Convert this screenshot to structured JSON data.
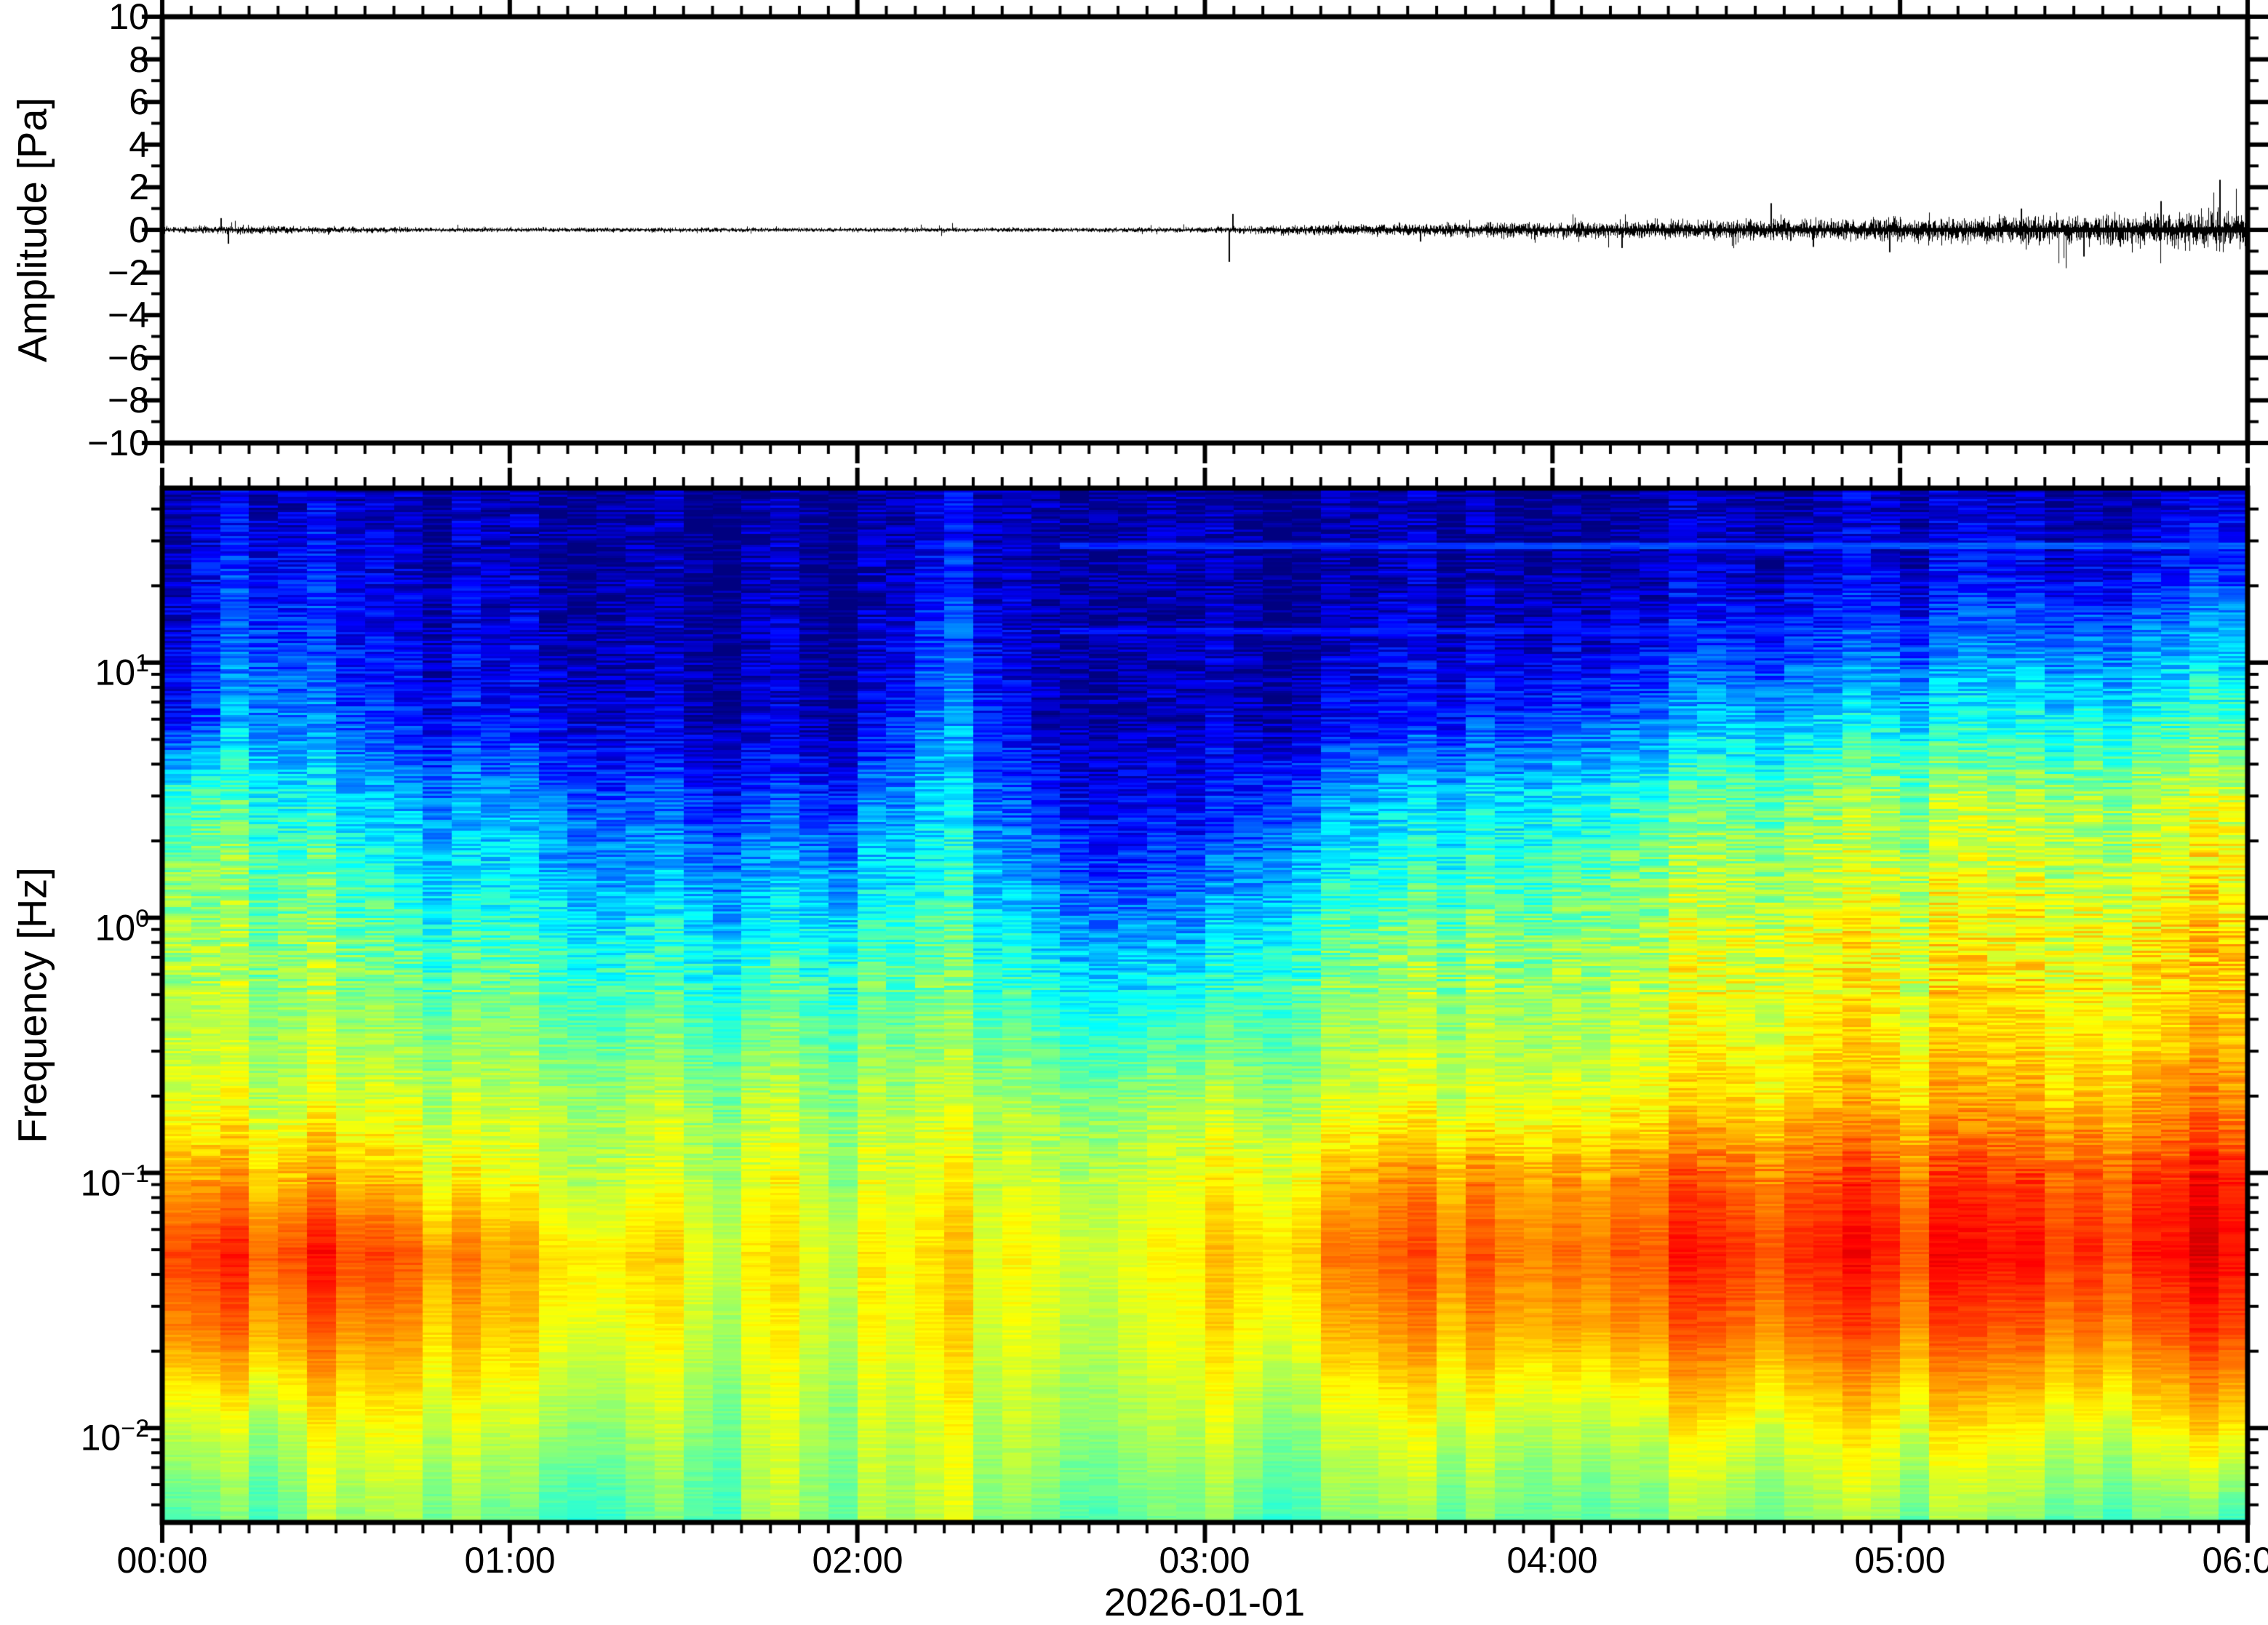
{
  "figure": {
    "background": "#ffffff",
    "frame_color": "#000000",
    "trace_color": "#000000"
  },
  "chart_data": [
    {
      "type": "line",
      "name": "infrasound-waveform",
      "ylabel": "Amplitude [Pa]",
      "ylim": [
        -10,
        10
      ],
      "ytick_step": 2,
      "ytick_labels": [
        "10",
        "8",
        "6",
        "4",
        "2",
        "0",
        "−2",
        "−4",
        "−6",
        "−8",
        "−10"
      ],
      "x_range_hours": [
        0,
        6
      ],
      "grid": false,
      "series_description": "near-zero noise trace, quiet until ~03:00 then amplitude grows toward 06:00",
      "envelope_t_hours": [
        0,
        0.25,
        0.5,
        0.75,
        1,
        1.25,
        1.5,
        1.75,
        2,
        2.25,
        2.5,
        2.75,
        3,
        3.25,
        3.5,
        3.75,
        4,
        4.25,
        4.5,
        4.75,
        5,
        5.25,
        5.5,
        5.75,
        6
      ],
      "envelope_sigma_pa": [
        0.055,
        0.095,
        0.065,
        0.05,
        0.048,
        0.048,
        0.05,
        0.048,
        0.05,
        0.05,
        0.048,
        0.05,
        0.06,
        0.1,
        0.125,
        0.145,
        0.165,
        0.185,
        0.205,
        0.23,
        0.25,
        0.275,
        0.3,
        0.33,
        0.36
      ],
      "spikes": [
        {
          "t": 0.17,
          "a": 0.55
        },
        {
          "t": 0.19,
          "a": -0.65
        },
        {
          "t": 3.07,
          "a": -1.5
        },
        {
          "t": 3.08,
          "a": 0.75
        },
        {
          "t": 3.62,
          "a": -0.55
        },
        {
          "t": 4.2,
          "a": -0.85
        },
        {
          "t": 4.63,
          "a": 1.25
        },
        {
          "t": 4.75,
          "a": -0.8
        },
        {
          "t": 4.97,
          "a": -1.05
        },
        {
          "t": 5.35,
          "a": 1.0
        },
        {
          "t": 5.53,
          "a": -1.25
        },
        {
          "t": 5.75,
          "a": 1.35
        },
        {
          "t": 5.92,
          "a": 2.35
        }
      ]
    },
    {
      "type": "heatmap",
      "name": "spectrogram",
      "ylabel": "Frequency [Hz]",
      "xlabel": "2026-01-01",
      "xtick_labels": [
        "00:00",
        "01:00",
        "02:00",
        "03:00",
        "04:00",
        "05:00",
        "06:00"
      ],
      "xminor_minutes": 5,
      "ytick_labels": [
        {
          "base": "10",
          "exp": "1"
        },
        {
          "base": "10",
          "exp": "0"
        },
        {
          "base": "10",
          "exp": "−1"
        },
        {
          "base": "10",
          "exp": "−2"
        }
      ],
      "yscale": "log",
      "flim_hz": [
        0.00427,
        48.3
      ],
      "colormap": "jet",
      "value_units": "normalized relative power 0-1",
      "grid": {
        "times_hours": [
          0,
          0.25,
          0.5,
          0.75,
          1,
          1.25,
          1.5,
          1.75,
          2,
          2.25,
          2.5,
          2.75,
          3,
          3.25,
          3.5,
          3.75,
          4,
          4.25,
          4.5,
          4.75,
          5,
          5.25,
          5.5,
          5.75,
          6
        ],
        "row_logf": [
          1.684,
          1.38,
          1.08,
          0.78,
          0.48,
          0.18,
          -0.12,
          -0.42,
          -0.72,
          -1.02,
          -1.32,
          -1.62,
          -1.99,
          -2.37
        ],
        "values": [
          [
            0.02,
            0.09,
            0.07,
            0.03,
            0.04,
            0.03,
            0.02,
            0.02,
            0.02,
            0.07,
            0.03,
            0.02,
            0.02,
            0.02,
            0.03,
            0.03,
            0.03,
            0.04,
            0.04,
            0.04,
            0.05,
            0.05,
            0.05,
            0.06,
            0.06
          ],
          [
            0.03,
            0.17,
            0.11,
            0.04,
            0.06,
            0.04,
            0.03,
            0.02,
            0.02,
            0.13,
            0.04,
            0.02,
            0.02,
            0.03,
            0.04,
            0.05,
            0.06,
            0.07,
            0.07,
            0.08,
            0.09,
            0.1,
            0.11,
            0.12,
            0.14
          ],
          [
            0.04,
            0.25,
            0.14,
            0.07,
            0.09,
            0.06,
            0.04,
            0.03,
            0.03,
            0.19,
            0.05,
            0.03,
            0.03,
            0.05,
            0.07,
            0.09,
            0.11,
            0.13,
            0.15,
            0.17,
            0.19,
            0.22,
            0.25,
            0.27,
            0.29
          ],
          [
            0.07,
            0.32,
            0.21,
            0.11,
            0.14,
            0.09,
            0.06,
            0.04,
            0.05,
            0.27,
            0.07,
            0.04,
            0.04,
            0.09,
            0.13,
            0.17,
            0.21,
            0.25,
            0.29,
            0.32,
            0.35,
            0.37,
            0.39,
            0.41,
            0.43
          ],
          [
            0.4,
            0.44,
            0.34,
            0.24,
            0.27,
            0.21,
            0.17,
            0.14,
            0.19,
            0.34,
            0.14,
            0.09,
            0.09,
            0.24,
            0.29,
            0.34,
            0.39,
            0.43,
            0.46,
            0.49,
            0.51,
            0.53,
            0.54,
            0.55,
            0.56
          ],
          [
            0.49,
            0.51,
            0.44,
            0.32,
            0.35,
            0.29,
            0.27,
            0.25,
            0.31,
            0.39,
            0.24,
            0.17,
            0.17,
            0.34,
            0.39,
            0.43,
            0.47,
            0.51,
            0.53,
            0.55,
            0.57,
            0.58,
            0.59,
            0.6,
            0.61
          ],
          [
            0.52,
            0.54,
            0.5,
            0.42,
            0.44,
            0.4,
            0.38,
            0.37,
            0.42,
            0.46,
            0.35,
            0.28,
            0.3,
            0.45,
            0.48,
            0.51,
            0.54,
            0.56,
            0.58,
            0.6,
            0.61,
            0.62,
            0.63,
            0.64,
            0.65
          ],
          [
            0.55,
            0.56,
            0.53,
            0.48,
            0.5,
            0.47,
            0.46,
            0.45,
            0.48,
            0.5,
            0.44,
            0.4,
            0.42,
            0.5,
            0.53,
            0.55,
            0.57,
            0.59,
            0.6,
            0.62,
            0.63,
            0.64,
            0.65,
            0.66,
            0.67
          ],
          [
            0.58,
            0.6,
            0.58,
            0.55,
            0.56,
            0.54,
            0.53,
            0.52,
            0.54,
            0.55,
            0.52,
            0.5,
            0.52,
            0.56,
            0.58,
            0.6,
            0.62,
            0.64,
            0.65,
            0.67,
            0.68,
            0.69,
            0.7,
            0.71,
            0.72
          ],
          [
            0.68,
            0.72,
            0.7,
            0.62,
            0.6,
            0.58,
            0.57,
            0.56,
            0.58,
            0.6,
            0.57,
            0.55,
            0.58,
            0.66,
            0.7,
            0.73,
            0.75,
            0.76,
            0.77,
            0.78,
            0.79,
            0.8,
            0.81,
            0.82,
            0.83
          ],
          [
            0.79,
            0.84,
            0.82,
            0.74,
            0.7,
            0.66,
            0.62,
            0.6,
            0.62,
            0.64,
            0.6,
            0.58,
            0.62,
            0.72,
            0.76,
            0.78,
            0.8,
            0.81,
            0.82,
            0.83,
            0.83,
            0.84,
            0.85,
            0.85,
            0.85
          ],
          [
            0.72,
            0.76,
            0.74,
            0.68,
            0.66,
            0.62,
            0.58,
            0.57,
            0.6,
            0.62,
            0.58,
            0.56,
            0.6,
            0.66,
            0.7,
            0.72,
            0.74,
            0.75,
            0.76,
            0.76,
            0.77,
            0.77,
            0.78,
            0.78,
            0.79
          ],
          [
            0.55,
            0.58,
            0.6,
            0.58,
            0.56,
            0.54,
            0.52,
            0.53,
            0.56,
            0.58,
            0.54,
            0.52,
            0.54,
            0.56,
            0.58,
            0.59,
            0.6,
            0.6,
            0.61,
            0.61,
            0.62,
            0.62,
            0.62,
            0.63,
            0.63
          ],
          [
            0.42,
            0.48,
            0.52,
            0.5,
            0.46,
            0.44,
            0.45,
            0.5,
            0.53,
            0.55,
            0.48,
            0.45,
            0.46,
            0.48,
            0.5,
            0.5,
            0.51,
            0.5,
            0.49,
            0.5,
            0.51,
            0.5,
            0.49,
            0.47,
            0.4
          ]
        ]
      },
      "horizontal_lines": [
        {
          "logf": 1.46,
          "t_start": 2.62,
          "level": 0.16
        },
        {
          "logf": 1.12,
          "t_start": 2.62,
          "level": 0.13
        }
      ]
    }
  ]
}
